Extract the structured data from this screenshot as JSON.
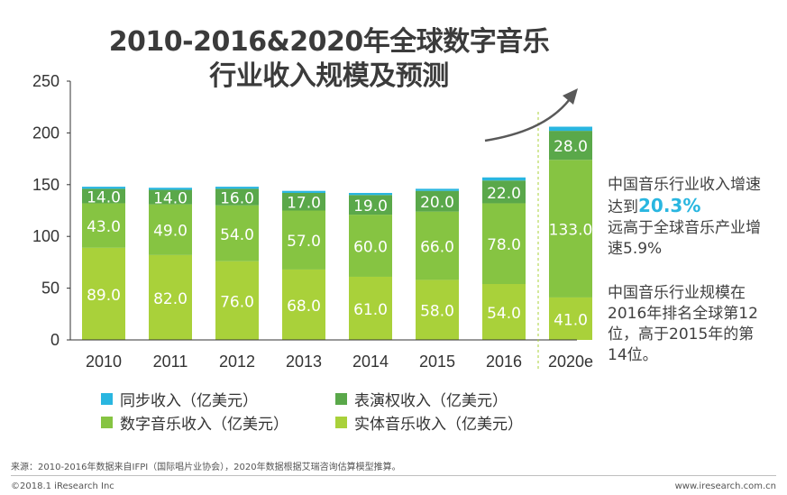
{
  "chart_data": {
    "type": "stacked-bar",
    "title": [
      "2010-2016&2020年全球数字音乐",
      "行业收入规模及预测"
    ],
    "categories": [
      "2010",
      "2011",
      "2012",
      "2013",
      "2014",
      "2015",
      "2016",
      "2020e"
    ],
    "ylim": [
      0,
      250
    ],
    "yticks": [
      0,
      50,
      100,
      150,
      200,
      250
    ],
    "series": [
      {
        "name": "实体音乐收入（亿美元）",
        "color": "#a9d13a",
        "label_color": "#ffffff",
        "values": [
          89,
          82,
          76,
          68,
          61,
          58,
          54,
          41
        ],
        "labels": [
          "89.0",
          "82.0",
          "76.0",
          "68.0",
          "61.0",
          "58.0",
          "54.0",
          "41.0"
        ]
      },
      {
        "name": "数字音乐收入（亿美元）",
        "color": "#86c442",
        "label_color": "#ffffff",
        "values": [
          43,
          49,
          54,
          57,
          60,
          66,
          78,
          133
        ],
        "labels": [
          "43.0",
          "49.0",
          "54.0",
          "57.0",
          "60.0",
          "66.0",
          "78.0",
          "133.0"
        ]
      },
      {
        "name": "表演权收入（亿美元）",
        "color": "#5aa84a",
        "label_color": "#ffffff",
        "values": [
          14,
          14,
          16,
          17,
          19,
          20,
          22,
          28
        ],
        "labels": [
          "14.0",
          "14.0",
          "16.0",
          "17.0",
          "19.0",
          "20.0",
          "22.0",
          "28.0"
        ]
      },
      {
        "name": "同步收入（亿美元）",
        "color": "#29b6e0",
        "label_color": "#ffffff",
        "values": [
          2,
          2,
          2,
          2,
          2,
          2,
          3,
          4
        ],
        "labels": []
      }
    ],
    "legend_order": [
      3,
      2,
      1,
      0
    ]
  },
  "annotations": {
    "growth_line1": "中国音乐行业收入增速",
    "growth_prefix": "达到",
    "growth_value": "20.3%",
    "growth_line3": "远高于全球音乐产业增",
    "growth_line4": "速5.9%",
    "rank_line1": "中国音乐行业规模在",
    "rank_line2": "2016年排名全球第12",
    "rank_line3": "位，高于2015年的第",
    "rank_line4": "14位。"
  },
  "footer": {
    "source": "来源：2010-2016年数据来自IFPI（国际唱片业协会），2020年数据根据艾瑞咨询估算模型推算。",
    "copyright": "©2018.1 iResearch Inc",
    "website": "www.iresearch.com.cn"
  },
  "colors": {
    "axis": "#333333",
    "trend_arrow": "#595959",
    "divider_line": "#a9d13a"
  }
}
